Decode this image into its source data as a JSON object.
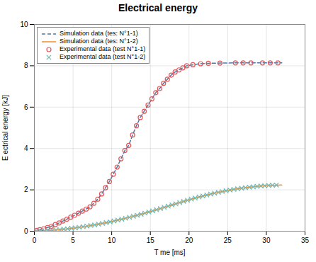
{
  "chart_data": {
    "type": "line",
    "title": "Electrical energy",
    "xlabel": "T me [ms]",
    "ylabel": "E ectrical energy [kJ]",
    "xlim": [
      0,
      35
    ],
    "ylim": [
      0,
      10
    ],
    "xticks": [
      0,
      5,
      10,
      15,
      20,
      25,
      30,
      35
    ],
    "yticks": [
      0,
      2,
      4,
      6,
      8,
      10
    ],
    "grid": true,
    "legend": "upper left",
    "series": [
      {
        "name": "Simulation data (tes: N°1-1)",
        "type": "line",
        "line_style": "dashed",
        "x": [
          0,
          0.3,
          0.7,
          1.2,
          1.7,
          2.2,
          2.7,
          3.2,
          3.7,
          4.2,
          4.7,
          5.2,
          5.7,
          6.2,
          6.7,
          7.2,
          7.7,
          8.2,
          8.7,
          9.2,
          9.7,
          10.2,
          10.7,
          11.2,
          11.7,
          12.2,
          12.7,
          13.2,
          13.7,
          14.2,
          14.7,
          15.2,
          15.7,
          16.2,
          16.7,
          17.2,
          17.7,
          18.2,
          18.7,
          19.2,
          19.7,
          20.5,
          21.5,
          22.5,
          24.0,
          26.0,
          28.0,
          30.0,
          32.0
        ],
        "values": [
          0,
          0.04,
          0.07,
          0.12,
          0.18,
          0.24,
          0.32,
          0.4,
          0.49,
          0.58,
          0.68,
          0.77,
          0.87,
          0.97,
          1.07,
          1.18,
          1.35,
          1.55,
          1.8,
          2.1,
          2.4,
          2.75,
          3.1,
          3.5,
          3.9,
          4.15,
          4.65,
          5.1,
          5.5,
          5.8,
          6.1,
          6.4,
          6.7,
          6.9,
          7.15,
          7.35,
          7.55,
          7.7,
          7.8,
          7.9,
          8.0,
          8.05,
          8.1,
          8.12,
          8.13,
          8.14,
          8.14,
          8.14,
          8.14
        ]
      },
      {
        "name": "Simulation data (tes: N°1-2)",
        "type": "line",
        "line_style": "solid",
        "x": [
          0,
          0.3,
          0.8,
          1.3,
          1.8,
          2.3,
          2.8,
          3.3,
          3.8,
          4.3,
          4.8,
          5.3,
          5.8,
          6.3,
          6.8,
          7.3,
          7.8,
          8.3,
          8.8,
          9.3,
          9.8,
          10.3,
          10.8,
          11.3,
          11.8,
          12.3,
          12.8,
          13.3,
          13.8,
          14.3,
          14.8,
          15.3,
          16.3,
          17.3,
          18.3,
          19.3,
          20.3,
          21.3,
          22.3,
          23.3,
          24.3,
          25.3,
          26.3,
          27.3,
          28.3,
          29.3,
          30.3,
          31.3,
          32.0
        ],
        "values": [
          0,
          0.005,
          0.01,
          0.02,
          0.03,
          0.045,
          0.06,
          0.075,
          0.095,
          0.115,
          0.138,
          0.162,
          0.188,
          0.215,
          0.244,
          0.275,
          0.307,
          0.341,
          0.377,
          0.414,
          0.453,
          0.494,
          0.536,
          0.58,
          0.625,
          0.672,
          0.72,
          0.77,
          0.821,
          0.873,
          0.927,
          0.982,
          1.095,
          1.21,
          1.326,
          1.44,
          1.55,
          1.654,
          1.75,
          1.838,
          1.918,
          1.99,
          2.052,
          2.104,
          2.148,
          2.184,
          2.212,
          2.228,
          2.235
        ]
      },
      {
        "name": "Experimental data (test N°1-1)",
        "type": "scatter",
        "marker": "circle",
        "x": [
          0.3,
          0.7,
          1.2,
          1.7,
          2.2,
          2.7,
          3.2,
          3.7,
          4.2,
          4.7,
          5.2,
          5.7,
          6.2,
          6.7,
          7.2,
          7.7,
          8.2,
          8.7,
          9.2,
          9.7,
          10.2,
          10.7,
          11.2,
          11.7,
          12.2,
          12.7,
          13.2,
          13.7,
          14.2,
          14.7,
          15.2,
          15.7,
          16.2,
          16.7,
          17.2,
          17.7,
          18.2,
          18.7,
          19.2,
          19.7,
          20.5,
          21.5,
          22.5,
          24.0,
          26.0,
          27.0,
          28.0,
          29.5,
          30.5,
          31.5
        ],
        "values": [
          0.04,
          0.07,
          0.12,
          0.18,
          0.24,
          0.32,
          0.4,
          0.49,
          0.58,
          0.68,
          0.77,
          0.87,
          0.97,
          1.07,
          1.18,
          1.35,
          1.55,
          1.8,
          2.1,
          2.4,
          2.75,
          3.1,
          3.5,
          3.9,
          4.15,
          4.65,
          5.1,
          5.5,
          5.8,
          6.1,
          6.4,
          6.7,
          6.9,
          7.15,
          7.35,
          7.55,
          7.7,
          7.8,
          7.9,
          8.0,
          8.05,
          8.1,
          8.12,
          8.13,
          8.14,
          8.14,
          8.14,
          8.14,
          8.14,
          8.14
        ]
      },
      {
        "name": "Experimental data (test N°1-2)",
        "type": "scatter",
        "marker": "x",
        "x": [
          0.3,
          0.8,
          1.3,
          1.8,
          2.3,
          2.8,
          3.3,
          3.8,
          4.3,
          4.8,
          5.3,
          5.8,
          6.3,
          6.8,
          7.3,
          7.8,
          8.3,
          8.8,
          9.3,
          9.8,
          10.3,
          10.8,
          11.3,
          11.8,
          12.3,
          12.8,
          13.3,
          13.8,
          14.3,
          14.8,
          15.3,
          15.8,
          16.3,
          16.8,
          17.3,
          17.8,
          18.3,
          18.8,
          19.3,
          19.8,
          20.3,
          20.8,
          21.3,
          21.8,
          22.3,
          22.8,
          23.3,
          23.8,
          24.3,
          24.8,
          25.3,
          25.8,
          26.3,
          26.8,
          27.3,
          27.8,
          28.3,
          28.8,
          29.3,
          29.8,
          30.3,
          30.8,
          31.3
        ],
        "values": [
          0.005,
          0.01,
          0.02,
          0.03,
          0.045,
          0.06,
          0.075,
          0.095,
          0.115,
          0.138,
          0.162,
          0.188,
          0.215,
          0.244,
          0.275,
          0.307,
          0.341,
          0.377,
          0.414,
          0.453,
          0.494,
          0.536,
          0.58,
          0.625,
          0.672,
          0.72,
          0.77,
          0.821,
          0.873,
          0.927,
          0.982,
          1.038,
          1.095,
          1.152,
          1.21,
          1.268,
          1.326,
          1.383,
          1.44,
          1.496,
          1.55,
          1.603,
          1.654,
          1.703,
          1.75,
          1.795,
          1.838,
          1.879,
          1.918,
          1.955,
          1.99,
          2.022,
          2.052,
          2.079,
          2.104,
          2.127,
          2.148,
          2.167,
          2.184,
          2.199,
          2.212,
          2.223,
          2.232
        ]
      }
    ]
  }
}
